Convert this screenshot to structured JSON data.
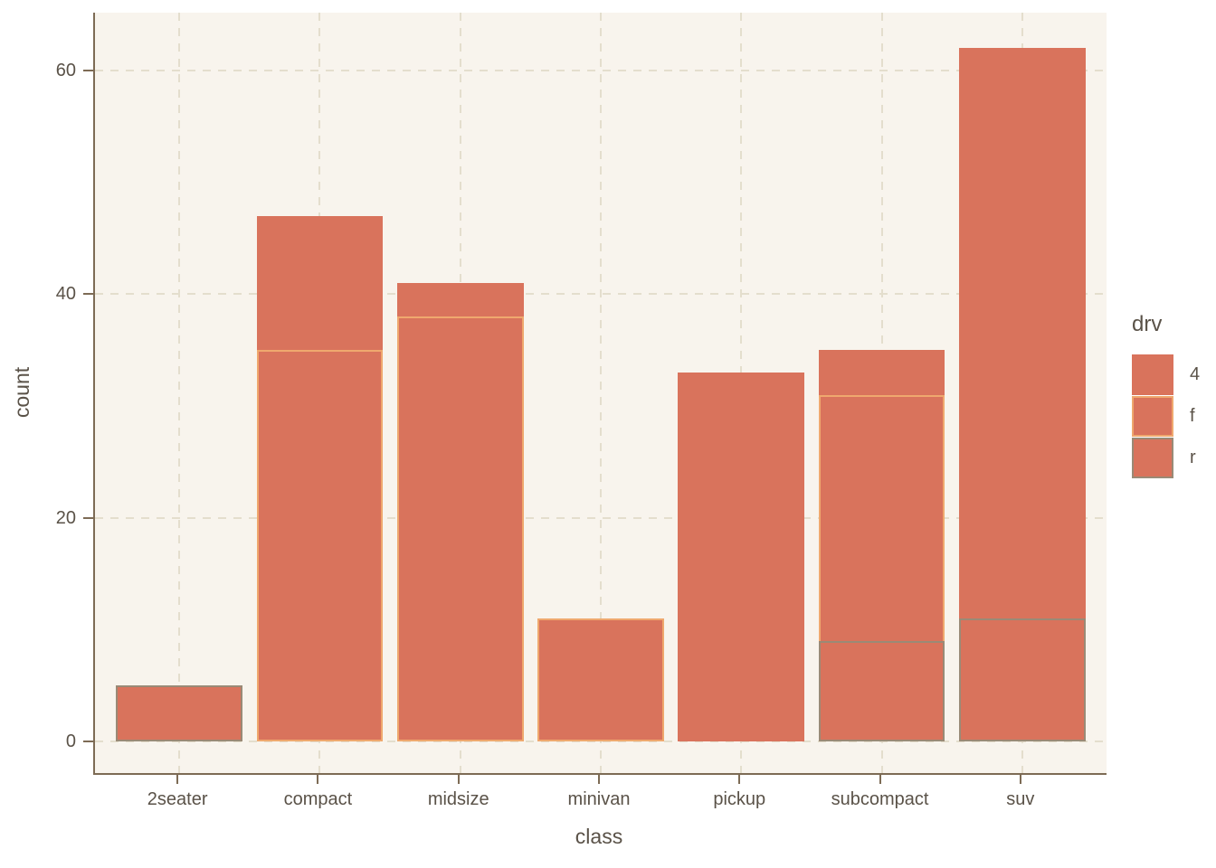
{
  "chart_data": {
    "type": "bar",
    "stacked": true,
    "xlabel": "class",
    "ylabel": "count",
    "categories": [
      "2seater",
      "compact",
      "midsize",
      "minivan",
      "pickup",
      "subcompact",
      "suv"
    ],
    "series": [
      {
        "name": "r",
        "stroke": "#9a8a76",
        "values": [
          5,
          0,
          0,
          0,
          0,
          9,
          11
        ]
      },
      {
        "name": "f",
        "stroke": "#efa86e",
        "values": [
          0,
          35,
          38,
          11,
          0,
          22,
          0
        ]
      },
      {
        "name": "4",
        "stroke": "#d9735c",
        "values": [
          0,
          12,
          3,
          0,
          33,
          4,
          51
        ]
      }
    ],
    "bar_fill": "#d9735c",
    "y_ticks": [
      0,
      20,
      40,
      60
    ],
    "ylim": [
      0,
      65
    ],
    "grid": "dashed",
    "legend": {
      "title": "drv",
      "position": "right",
      "entries": [
        {
          "label": "4",
          "fill": "#d9735c",
          "stroke": "#d9735c"
        },
        {
          "label": "f",
          "fill": "#d9735c",
          "stroke": "#efa86e"
        },
        {
          "label": "r",
          "fill": "#d9735c",
          "stroke": "#9a8a76"
        }
      ]
    }
  },
  "style": {
    "panel_bg": "#f8f4ed",
    "outer_bg": "#ffffff",
    "grid_color": "#e4decd",
    "axis_color": "#7d6b55",
    "text_color": "#5a5248"
  }
}
